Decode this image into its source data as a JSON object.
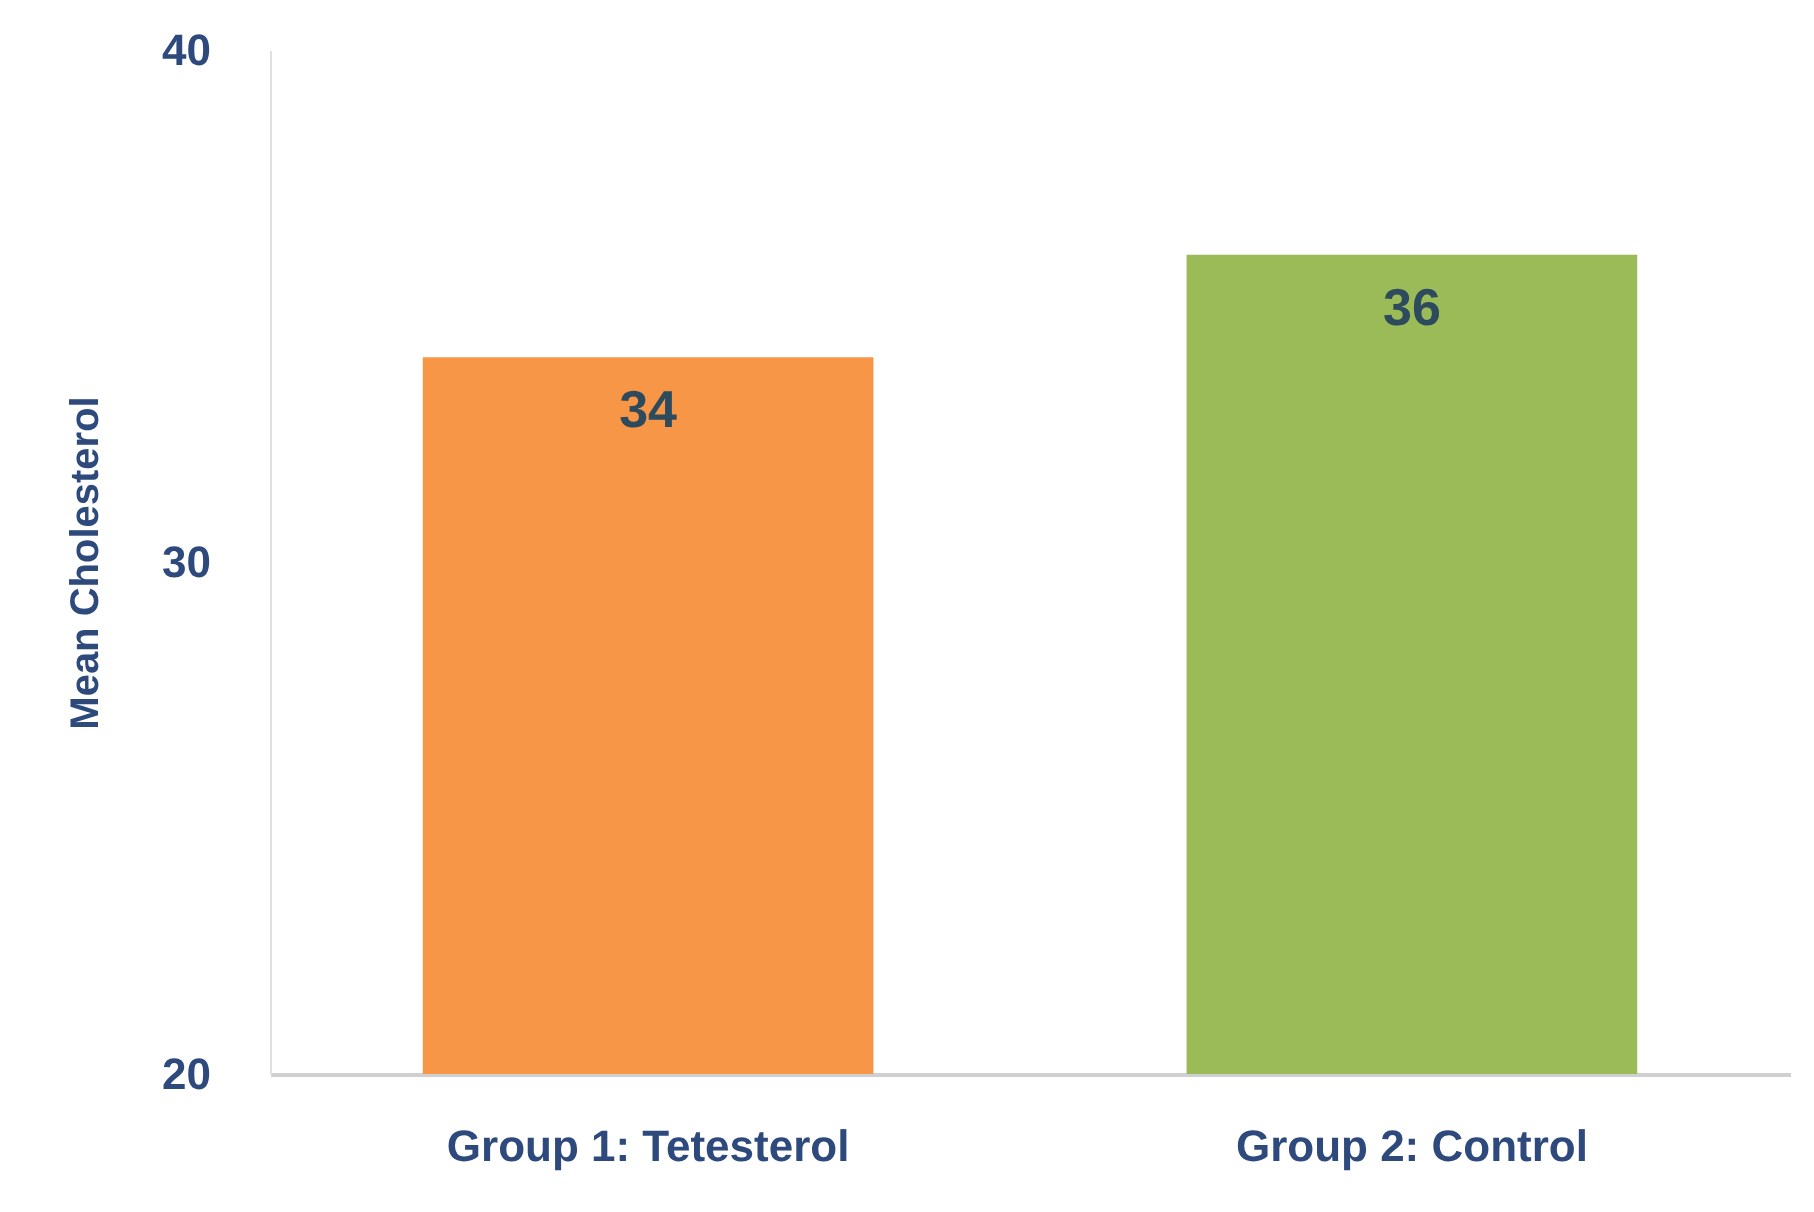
{
  "chart_data": {
    "type": "bar",
    "ylabel": "Mean Cholesterol",
    "categories": [
      "Group 1: Tetesterol",
      "Group 2: Control"
    ],
    "values": [
      34,
      36
    ],
    "colors": [
      "#f79646",
      "#9bbb59"
    ],
    "ylim": [
      20,
      40
    ],
    "yticks": [
      20,
      30,
      40
    ],
    "grid": false,
    "data_labels": true
  }
}
